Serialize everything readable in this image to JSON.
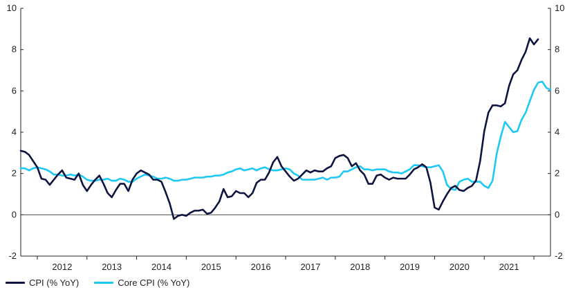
{
  "chart_data": {
    "type": "line",
    "title": "",
    "xlabel": "",
    "ylabel": "",
    "ylim": [
      -2,
      10
    ],
    "yticks": [
      -2,
      0,
      2,
      4,
      6,
      8,
      10
    ],
    "ytick_labels": [
      "-2",
      "0",
      "2",
      "4",
      "6",
      "8",
      "10"
    ],
    "x_range": [
      "2011-09",
      "2022-05"
    ],
    "x_tick_labels": [
      "2012",
      "2013",
      "2014",
      "2015",
      "2016",
      "2017",
      "2018",
      "2019",
      "2020",
      "2021"
    ],
    "secondary_axis": "right (same scale)",
    "zero_line": true,
    "grid": false,
    "legend_position": "bottom-left",
    "series": [
      {
        "name": "CPI (% YoY)",
        "color": "#0d1440",
        "points": [
          [
            "2011-09",
            3.1
          ],
          [
            "2011-10",
            3.05
          ],
          [
            "2011-11",
            2.9
          ],
          [
            "2011-12",
            2.6
          ],
          [
            "2012-01",
            2.3
          ],
          [
            "2012-02",
            1.75
          ],
          [
            "2012-03",
            1.7
          ],
          [
            "2012-04",
            1.45
          ],
          [
            "2012-05",
            1.7
          ],
          [
            "2012-06",
            1.95
          ],
          [
            "2012-07",
            2.15
          ],
          [
            "2012-08",
            1.8
          ],
          [
            "2012-09",
            1.75
          ],
          [
            "2012-10",
            1.7
          ],
          [
            "2012-11",
            2.0
          ],
          [
            "2012-12",
            1.45
          ],
          [
            "2013-01",
            1.15
          ],
          [
            "2013-02",
            1.45
          ],
          [
            "2013-03",
            1.7
          ],
          [
            "2013-04",
            1.9
          ],
          [
            "2013-05",
            1.5
          ],
          [
            "2013-06",
            1.05
          ],
          [
            "2013-07",
            0.85
          ],
          [
            "2013-08",
            1.2
          ],
          [
            "2013-09",
            1.5
          ],
          [
            "2013-10",
            1.5
          ],
          [
            "2013-11",
            1.15
          ],
          [
            "2013-12",
            1.7
          ],
          [
            "2014-01",
            2.0
          ],
          [
            "2014-02",
            2.15
          ],
          [
            "2014-03",
            2.05
          ],
          [
            "2014-04",
            1.95
          ],
          [
            "2014-05",
            1.7
          ],
          [
            "2014-06",
            1.7
          ],
          [
            "2014-07",
            1.6
          ],
          [
            "2014-08",
            1.1
          ],
          [
            "2014-09",
            0.55
          ],
          [
            "2014-10",
            -0.2
          ],
          [
            "2014-11",
            -0.05
          ],
          [
            "2014-12",
            0.0
          ],
          [
            "2015-01",
            -0.05
          ],
          [
            "2015-02",
            0.1
          ],
          [
            "2015-03",
            0.2
          ],
          [
            "2015-04",
            0.2
          ],
          [
            "2015-05",
            0.25
          ],
          [
            "2015-06",
            0.05
          ],
          [
            "2015-07",
            0.1
          ],
          [
            "2015-08",
            0.35
          ],
          [
            "2015-09",
            0.65
          ],
          [
            "2015-10",
            1.25
          ],
          [
            "2015-11",
            0.85
          ],
          [
            "2015-12",
            0.9
          ],
          [
            "2016-01",
            1.15
          ],
          [
            "2016-02",
            1.05
          ],
          [
            "2016-03",
            1.05
          ],
          [
            "2016-04",
            0.85
          ],
          [
            "2016-05",
            1.05
          ],
          [
            "2016-06",
            1.55
          ],
          [
            "2016-07",
            1.7
          ],
          [
            "2016-08",
            1.7
          ],
          [
            "2016-09",
            2.05
          ],
          [
            "2016-10",
            2.55
          ],
          [
            "2016-11",
            2.8
          ],
          [
            "2016-12",
            2.35
          ],
          [
            "2017-01",
            2.1
          ],
          [
            "2017-02",
            1.85
          ],
          [
            "2017-03",
            1.65
          ],
          [
            "2017-04",
            1.75
          ],
          [
            "2017-05",
            1.95
          ],
          [
            "2017-06",
            2.15
          ],
          [
            "2017-07",
            2.05
          ],
          [
            "2017-08",
            2.15
          ],
          [
            "2017-09",
            2.1
          ],
          [
            "2017-10",
            2.1
          ],
          [
            "2017-11",
            2.25
          ],
          [
            "2017-12",
            2.35
          ],
          [
            "2018-01",
            2.75
          ],
          [
            "2018-02",
            2.85
          ],
          [
            "2018-03",
            2.9
          ],
          [
            "2018-04",
            2.75
          ],
          [
            "2018-05",
            2.35
          ],
          [
            "2018-06",
            2.5
          ],
          [
            "2018-07",
            2.15
          ],
          [
            "2018-08",
            1.95
          ],
          [
            "2018-09",
            1.5
          ],
          [
            "2018-10",
            1.5
          ],
          [
            "2018-11",
            1.9
          ],
          [
            "2018-12",
            1.95
          ],
          [
            "2019-01",
            1.8
          ],
          [
            "2019-02",
            1.7
          ],
          [
            "2019-03",
            1.8
          ],
          [
            "2019-04",
            1.75
          ],
          [
            "2019-05",
            1.75
          ],
          [
            "2019-06",
            1.75
          ],
          [
            "2019-07",
            1.95
          ],
          [
            "2019-08",
            2.2
          ],
          [
            "2019-09",
            2.3
          ],
          [
            "2019-10",
            2.45
          ],
          [
            "2019-11",
            2.3
          ],
          [
            "2019-12",
            1.55
          ],
          [
            "2020-01",
            0.35
          ],
          [
            "2020-02",
            0.25
          ],
          [
            "2020-03",
            0.65
          ],
          [
            "2020-04",
            1.0
          ],
          [
            "2020-05",
            1.3
          ],
          [
            "2020-06",
            1.4
          ],
          [
            "2020-07",
            1.2
          ],
          [
            "2020-08",
            1.15
          ],
          [
            "2020-09",
            1.3
          ],
          [
            "2020-10",
            1.4
          ],
          [
            "2020-11",
            1.65
          ],
          [
            "2020-12",
            2.6
          ],
          [
            "2021-01",
            4.05
          ],
          [
            "2021-02",
            4.95
          ],
          [
            "2021-03",
            5.3
          ],
          [
            "2021-04",
            5.3
          ],
          [
            "2021-05",
            5.25
          ],
          [
            "2021-06",
            5.4
          ],
          [
            "2021-07",
            6.25
          ],
          [
            "2021-08",
            6.8
          ],
          [
            "2021-09",
            7.0
          ],
          [
            "2021-10",
            7.5
          ],
          [
            "2021-11",
            7.9
          ],
          [
            "2021-12",
            8.55
          ],
          [
            "2022-01",
            8.25
          ],
          [
            "2022-02",
            8.5
          ]
        ]
      },
      {
        "name": "Core CPI (% YoY)",
        "color": "#1ec8f5",
        "points": [
          [
            "2011-09",
            2.25
          ],
          [
            "2011-10",
            2.25
          ],
          [
            "2011-11",
            2.15
          ],
          [
            "2011-12",
            2.25
          ],
          [
            "2012-01",
            2.3
          ],
          [
            "2012-02",
            2.25
          ],
          [
            "2012-03",
            2.2
          ],
          [
            "2012-04",
            2.1
          ],
          [
            "2012-05",
            1.95
          ],
          [
            "2012-06",
            1.95
          ],
          [
            "2012-07",
            1.9
          ],
          [
            "2012-08",
            1.9
          ],
          [
            "2012-09",
            1.95
          ],
          [
            "2012-10",
            1.9
          ],
          [
            "2012-11",
            1.95
          ],
          [
            "2012-12",
            1.85
          ],
          [
            "2013-01",
            1.7
          ],
          [
            "2013-02",
            1.65
          ],
          [
            "2013-03",
            1.65
          ],
          [
            "2013-04",
            1.7
          ],
          [
            "2013-05",
            1.7
          ],
          [
            "2013-06",
            1.75
          ],
          [
            "2013-07",
            1.65
          ],
          [
            "2013-08",
            1.65
          ],
          [
            "2013-09",
            1.75
          ],
          [
            "2013-10",
            1.7
          ],
          [
            "2013-11",
            1.6
          ],
          [
            "2013-12",
            1.6
          ],
          [
            "2014-01",
            1.75
          ],
          [
            "2014-02",
            1.85
          ],
          [
            "2014-03",
            1.95
          ],
          [
            "2014-04",
            1.9
          ],
          [
            "2014-05",
            1.85
          ],
          [
            "2014-06",
            1.75
          ],
          [
            "2014-07",
            1.75
          ],
          [
            "2014-08",
            1.8
          ],
          [
            "2014-09",
            1.75
          ],
          [
            "2014-10",
            1.65
          ],
          [
            "2014-11",
            1.65
          ],
          [
            "2014-12",
            1.7
          ],
          [
            "2015-01",
            1.7
          ],
          [
            "2015-02",
            1.75
          ],
          [
            "2015-03",
            1.8
          ],
          [
            "2015-04",
            1.8
          ],
          [
            "2015-05",
            1.8
          ],
          [
            "2015-06",
            1.85
          ],
          [
            "2015-07",
            1.85
          ],
          [
            "2015-08",
            1.9
          ],
          [
            "2015-09",
            1.9
          ],
          [
            "2015-10",
            1.95
          ],
          [
            "2015-11",
            2.05
          ],
          [
            "2015-12",
            2.1
          ],
          [
            "2016-01",
            2.2
          ],
          [
            "2016-02",
            2.25
          ],
          [
            "2016-03",
            2.15
          ],
          [
            "2016-04",
            2.2
          ],
          [
            "2016-05",
            2.25
          ],
          [
            "2016-06",
            2.15
          ],
          [
            "2016-07",
            2.25
          ],
          [
            "2016-08",
            2.3
          ],
          [
            "2016-09",
            2.2
          ],
          [
            "2016-10",
            2.15
          ],
          [
            "2016-11",
            2.15
          ],
          [
            "2016-12",
            2.2
          ],
          [
            "2017-01",
            2.25
          ],
          [
            "2017-02",
            2.2
          ],
          [
            "2017-03",
            2.0
          ],
          [
            "2017-04",
            1.9
          ],
          [
            "2017-05",
            1.7
          ],
          [
            "2017-06",
            1.7
          ],
          [
            "2017-07",
            1.7
          ],
          [
            "2017-08",
            1.7
          ],
          [
            "2017-09",
            1.75
          ],
          [
            "2017-10",
            1.8
          ],
          [
            "2017-11",
            1.7
          ],
          [
            "2017-12",
            1.8
          ],
          [
            "2018-01",
            1.8
          ],
          [
            "2018-02",
            1.85
          ],
          [
            "2018-03",
            2.1
          ],
          [
            "2018-04",
            2.1
          ],
          [
            "2018-05",
            2.2
          ],
          [
            "2018-06",
            2.3
          ],
          [
            "2018-07",
            2.35
          ],
          [
            "2018-08",
            2.2
          ],
          [
            "2018-09",
            2.2
          ],
          [
            "2018-10",
            2.15
          ],
          [
            "2018-11",
            2.2
          ],
          [
            "2018-12",
            2.2
          ],
          [
            "2019-01",
            2.2
          ],
          [
            "2019-02",
            2.1
          ],
          [
            "2019-03",
            2.05
          ],
          [
            "2019-04",
            2.05
          ],
          [
            "2019-05",
            2.0
          ],
          [
            "2019-06",
            2.1
          ],
          [
            "2019-07",
            2.2
          ],
          [
            "2019-08",
            2.4
          ],
          [
            "2019-09",
            2.4
          ],
          [
            "2019-10",
            2.35
          ],
          [
            "2019-11",
            2.3
          ],
          [
            "2019-12",
            2.3
          ],
          [
            "2020-01",
            2.35
          ],
          [
            "2020-02",
            2.4
          ],
          [
            "2020-03",
            2.1
          ],
          [
            "2020-04",
            1.45
          ],
          [
            "2020-05",
            1.25
          ],
          [
            "2020-06",
            1.2
          ],
          [
            "2020-07",
            1.6
          ],
          [
            "2020-08",
            1.7
          ],
          [
            "2020-09",
            1.75
          ],
          [
            "2020-10",
            1.6
          ],
          [
            "2020-11",
            1.6
          ],
          [
            "2020-12",
            1.6
          ],
          [
            "2021-01",
            1.4
          ],
          [
            "2021-02",
            1.3
          ],
          [
            "2021-03",
            1.65
          ],
          [
            "2021-04",
            2.95
          ],
          [
            "2021-05",
            3.8
          ],
          [
            "2021-06",
            4.5
          ],
          [
            "2021-07",
            4.25
          ],
          [
            "2021-08",
            4.0
          ],
          [
            "2021-09",
            4.05
          ],
          [
            "2021-10",
            4.6
          ],
          [
            "2021-11",
            4.95
          ],
          [
            "2021-12",
            5.5
          ],
          [
            "2022-01",
            6.05
          ],
          [
            "2022-02",
            6.4
          ],
          [
            "2022-03",
            6.45
          ],
          [
            "2022-04",
            6.15
          ],
          [
            "2022-05",
            6.05
          ]
        ]
      }
    ]
  }
}
